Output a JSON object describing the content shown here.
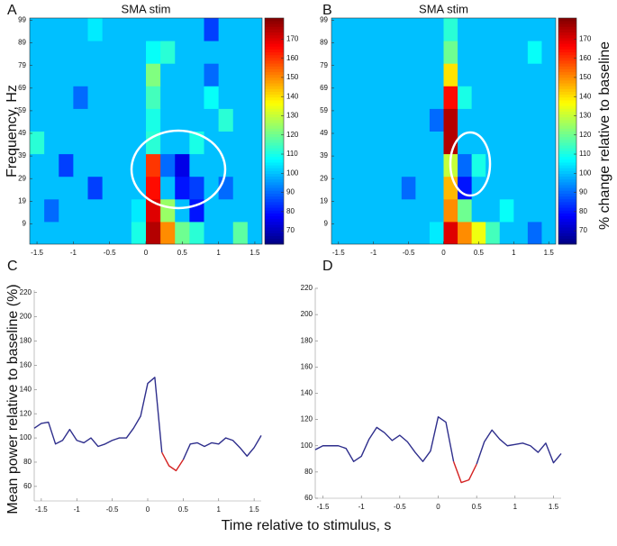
{
  "chart_data": [
    {
      "type": "heatmap",
      "label": "A",
      "title": "SMA stim",
      "ylabel": "Frequency, Hz",
      "x": [
        -1.5,
        -1.3,
        -1.1,
        -0.9,
        -0.7,
        -0.5,
        -0.3,
        -0.1,
        0.1,
        0.3,
        0.5,
        0.7,
        0.9,
        1.1,
        1.3,
        1.5
      ],
      "y": [
        5,
        15,
        25,
        35,
        45,
        55,
        65,
        75,
        85,
        95
      ],
      "z": [
        [
          100,
          100,
          100,
          100,
          100,
          100,
          100,
          110,
          175,
          150,
          120,
          112,
          100,
          100,
          118,
          100
        ],
        [
          100,
          90,
          100,
          100,
          100,
          100,
          100,
          105,
          170,
          125,
          100,
          80,
          100,
          100,
          100,
          100
        ],
        [
          100,
          100,
          100,
          100,
          85,
          100,
          100,
          100,
          165,
          100,
          80,
          85,
          100,
          90,
          100,
          100
        ],
        [
          100,
          100,
          85,
          100,
          100,
          100,
          100,
          100,
          160,
          90,
          75,
          100,
          100,
          100,
          100,
          100
        ],
        [
          112,
          100,
          100,
          100,
          100,
          100,
          100,
          100,
          112,
          100,
          100,
          110,
          100,
          100,
          100,
          100
        ],
        [
          100,
          100,
          100,
          100,
          100,
          100,
          100,
          100,
          110,
          100,
          100,
          100,
          100,
          112,
          100,
          100
        ],
        [
          100,
          100,
          100,
          90,
          100,
          100,
          100,
          100,
          115,
          100,
          100,
          100,
          108,
          100,
          100,
          100
        ],
        [
          100,
          100,
          100,
          100,
          100,
          100,
          100,
          100,
          122,
          100,
          100,
          100,
          90,
          100,
          100,
          100
        ],
        [
          100,
          100,
          100,
          100,
          100,
          100,
          100,
          100,
          108,
          112,
          100,
          100,
          100,
          100,
          100,
          100
        ],
        [
          100,
          100,
          100,
          100,
          105,
          100,
          100,
          100,
          100,
          100,
          100,
          100,
          85,
          100,
          100,
          100
        ]
      ],
      "xlim": [
        -1.6,
        1.6
      ],
      "xticks": [
        -1.5,
        -1,
        -0.5,
        0,
        0.5,
        1,
        1.5
      ],
      "ylim": [
        0,
        100
      ],
      "yticks": [
        9,
        19,
        29,
        39,
        49,
        59,
        69,
        79,
        89,
        99
      ],
      "zlim": [
        63,
        181
      ],
      "colorbar_ticks": [
        70,
        80,
        90,
        100,
        110,
        120,
        130,
        140,
        150,
        160,
        170
      ],
      "colormap": "jet"
    },
    {
      "type": "heatmap",
      "label": "B",
      "title": "SMA stim",
      "colorbar_label": "% change relative to baseline",
      "x": [
        -1.5,
        -1.3,
        -1.1,
        -0.9,
        -0.7,
        -0.5,
        -0.3,
        -0.1,
        0.1,
        0.3,
        0.5,
        0.7,
        0.9,
        1.1,
        1.3,
        1.5
      ],
      "y": [
        5,
        15,
        25,
        35,
        45,
        55,
        65,
        75,
        85,
        95
      ],
      "z": [
        [
          100,
          100,
          100,
          100,
          100,
          100,
          100,
          105,
          170,
          150,
          135,
          115,
          100,
          100,
          90,
          100
        ],
        [
          100,
          100,
          100,
          100,
          100,
          100,
          100,
          100,
          150,
          120,
          100,
          100,
          108,
          100,
          100,
          100
        ],
        [
          100,
          100,
          100,
          100,
          100,
          90,
          100,
          100,
          145,
          80,
          100,
          100,
          100,
          100,
          100,
          100
        ],
        [
          100,
          100,
          100,
          100,
          100,
          100,
          100,
          100,
          130,
          90,
          110,
          100,
          100,
          100,
          100,
          100
        ],
        [
          100,
          100,
          100,
          100,
          100,
          100,
          100,
          100,
          175,
          100,
          100,
          100,
          100,
          100,
          100,
          100
        ],
        [
          100,
          100,
          100,
          100,
          100,
          100,
          100,
          90,
          175,
          100,
          100,
          100,
          100,
          100,
          100,
          100
        ],
        [
          100,
          100,
          100,
          100,
          100,
          100,
          100,
          100,
          165,
          110,
          100,
          100,
          100,
          100,
          100,
          100
        ],
        [
          100,
          100,
          100,
          100,
          100,
          100,
          100,
          100,
          140,
          100,
          100,
          100,
          100,
          100,
          100,
          100
        ],
        [
          100,
          100,
          100,
          100,
          100,
          100,
          100,
          100,
          120,
          100,
          100,
          100,
          100,
          100,
          108,
          100
        ],
        [
          100,
          100,
          100,
          100,
          100,
          100,
          100,
          100,
          112,
          100,
          100,
          100,
          100,
          100,
          100,
          100
        ]
      ],
      "xlim": [
        -1.6,
        1.6
      ],
      "xticks": [
        -1.5,
        -1,
        -0.5,
        0,
        0.5,
        1,
        1.5
      ],
      "ylim": [
        0,
        100
      ],
      "yticks": [
        9,
        19,
        29,
        39,
        49,
        59,
        69,
        79,
        89,
        99
      ],
      "zlim": [
        63,
        181
      ],
      "colorbar_ticks": [
        70,
        80,
        90,
        100,
        110,
        120,
        130,
        140,
        150,
        160,
        170
      ],
      "colormap": "jet"
    },
    {
      "type": "line",
      "label": "C",
      "ylabel": "Mean power relative to baseline (%)",
      "xlabel": "Time relative to stimulus, s",
      "x": [
        -1.6,
        -1.5,
        -1.4,
        -1.3,
        -1.2,
        -1.1,
        -1.0,
        -0.9,
        -0.8,
        -0.7,
        -0.6,
        -0.5,
        -0.4,
        -0.3,
        -0.2,
        -0.1,
        0.0,
        0.1,
        0.2,
        0.3,
        0.4,
        0.5,
        0.6,
        0.7,
        0.8,
        0.9,
        1.0,
        1.1,
        1.2,
        1.3,
        1.4,
        1.5,
        1.6
      ],
      "series": [
        {
          "color": "#2e2e8c",
          "values": [
            108,
            112,
            113,
            95,
            98,
            107,
            98,
            96,
            100,
            93,
            95,
            98,
            100,
            100,
            108,
            118,
            145,
            150,
            88,
            null,
            null,
            82,
            95,
            96,
            93,
            96,
            95,
            100,
            98,
            92,
            85,
            92,
            102
          ]
        },
        {
          "color": "#d42222",
          "values": [
            null,
            null,
            null,
            null,
            null,
            null,
            null,
            null,
            null,
            null,
            null,
            null,
            null,
            null,
            null,
            null,
            null,
            null,
            88,
            77,
            73,
            82,
            null,
            null,
            null,
            null,
            null,
            null,
            null,
            null,
            null,
            null,
            null
          ]
        }
      ],
      "xlim": [
        -1.6,
        1.6
      ],
      "xticks": [
        -1.5,
        -1,
        -0.5,
        0,
        0.5,
        1,
        1.5
      ],
      "ylim": [
        48,
        222
      ],
      "yticks": [
        60,
        80,
        100,
        120,
        140,
        160,
        180,
        200,
        220
      ]
    },
    {
      "type": "line",
      "label": "D",
      "x": [
        -1.6,
        -1.5,
        -1.4,
        -1.3,
        -1.2,
        -1.1,
        -1.0,
        -0.9,
        -0.8,
        -0.7,
        -0.6,
        -0.5,
        -0.4,
        -0.3,
        -0.2,
        -0.1,
        0.0,
        0.1,
        0.2,
        0.3,
        0.4,
        0.5,
        0.6,
        0.7,
        0.8,
        0.9,
        1.0,
        1.1,
        1.2,
        1.3,
        1.4,
        1.5,
        1.6
      ],
      "series": [
        {
          "color": "#2e2e8c",
          "values": [
            97,
            100,
            100,
            100,
            98,
            88,
            92,
            105,
            114,
            110,
            104,
            108,
            103,
            95,
            88,
            96,
            122,
            118,
            88,
            null,
            null,
            86,
            103,
            112,
            105,
            100,
            101,
            102,
            100,
            95,
            102,
            87,
            94
          ]
        },
        {
          "color": "#d42222",
          "values": [
            null,
            null,
            null,
            null,
            null,
            null,
            null,
            null,
            null,
            null,
            null,
            null,
            null,
            null,
            null,
            null,
            null,
            null,
            88,
            72,
            74,
            86,
            null,
            null,
            null,
            null,
            null,
            null,
            null,
            null,
            null,
            null,
            null
          ]
        }
      ],
      "xlim": [
        -1.6,
        1.6
      ],
      "xticks": [
        -1.5,
        -1,
        -0.5,
        0,
        0.5,
        1,
        1.5
      ],
      "ylim": [
        60,
        220
      ],
      "yticks": [
        60,
        80,
        100,
        120,
        140,
        160,
        180,
        200,
        220
      ]
    }
  ]
}
